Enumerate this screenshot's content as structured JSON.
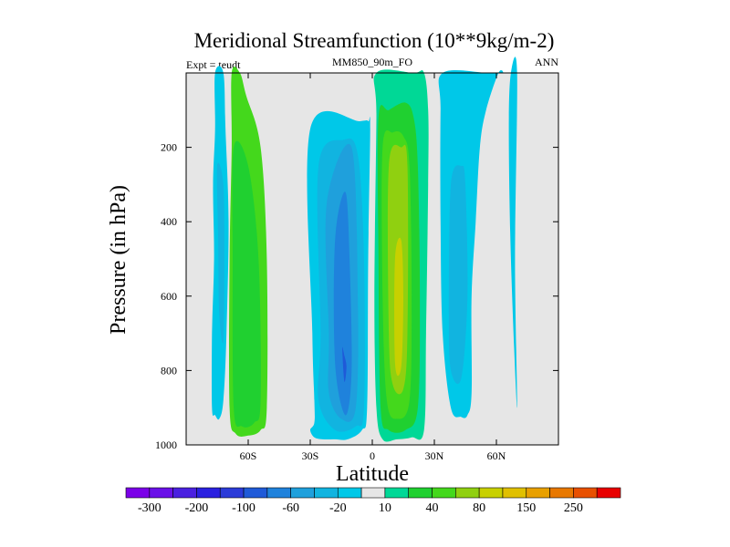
{
  "chart_data": {
    "type": "filled-contour",
    "title": "Meridional Streamfunction (10**9kg/m-2)",
    "left_label": "Expt = teudt",
    "center_label": "MM850_90m_FO",
    "right_label": "ANN",
    "xlabel": "Latitude",
    "ylabel": "Pressure (in hPa)",
    "xlim": [
      -90,
      90
    ],
    "ylim": [
      1000,
      0
    ],
    "x_ticks": [
      {
        "value": -60,
        "label": "60S"
      },
      {
        "value": -30,
        "label": "30S"
      },
      {
        "value": 0,
        "label": "0"
      },
      {
        "value": 30,
        "label": "30N"
      },
      {
        "value": 60,
        "label": "60N"
      }
    ],
    "y_ticks": [
      {
        "value": 200,
        "label": "200"
      },
      {
        "value": 400,
        "label": "400"
      },
      {
        "value": 600,
        "label": "600"
      },
      {
        "value": 800,
        "label": "800"
      },
      {
        "value": 1000,
        "label": "1000"
      }
    ],
    "background_color": "#e6e6e6",
    "colorbar": {
      "colors": [
        "#7b00e8",
        "#6a10e8",
        "#4a20e0",
        "#2a20e0",
        "#2b3bd8",
        "#1f5ad8",
        "#1f82dc",
        "#1fa0dc",
        "#11b4e0",
        "#00c8e8",
        "#e6e6e6",
        "#00d896",
        "#20d030",
        "#44d81c",
        "#90d010",
        "#c8d000",
        "#e0c000",
        "#e8a000",
        "#e87800",
        "#e85000",
        "#e80000"
      ],
      "labels": [
        "-300",
        "-200",
        "-100",
        "-60",
        "-20",
        "10",
        "40",
        "80",
        "150",
        "250"
      ],
      "label_boundary_index": [
        1,
        3,
        5,
        7,
        9,
        11,
        13,
        15,
        17,
        19
      ]
    },
    "regions": [
      {
        "name": "sh-polar-cell-cyan",
        "color": "#00c8e8",
        "lat": [
          -76,
          -76,
          -77,
          -76.5,
          -77.5,
          -77.5,
          -76,
          -74,
          -72,
          -70.5,
          -69.5,
          -71,
          -72
        ],
        "p": [
          0,
          150,
          300,
          500,
          700,
          900,
          920,
          930,
          880,
          700,
          400,
          150,
          0
        ],
        "close": "top"
      },
      {
        "name": "sh-polar-cell-blue",
        "color": "#11b4e0",
        "lat": [
          -75,
          -74.5,
          -74,
          -72,
          -71.5,
          -72
        ],
        "p": [
          250,
          450,
          650,
          720,
          500,
          300
        ]
      },
      {
        "name": "sh-ferrel-cell-green-outer",
        "color": "#44d81c",
        "lat": [
          -68,
          -68,
          -69,
          -69,
          -66,
          -60,
          -54,
          -51,
          -51,
          -54,
          -61,
          -64
        ],
        "p": [
          0,
          200,
          500,
          900,
          970,
          975,
          960,
          900,
          500,
          200,
          60,
          0
        ],
        "close": "top"
      },
      {
        "name": "sh-ferrel-cell-green-inner",
        "color": "#20d030",
        "lat": [
          -67,
          -67.5,
          -67,
          -63,
          -57,
          -54,
          -55,
          -60
        ],
        "p": [
          200,
          500,
          900,
          950,
          940,
          880,
          500,
          250
        ]
      },
      {
        "name": "sh-hadley-cell-cyan",
        "color": "#00c8e8",
        "lat": [
          -30,
          -29,
          -28,
          -28,
          -30,
          -28,
          -24,
          -18,
          -12,
          -5,
          -2.5,
          -2,
          -1,
          -2,
          -6
        ],
        "p": [
          150,
          700,
          880,
          940,
          960,
          980,
          985,
          985,
          985,
          960,
          900,
          500,
          150,
          130,
          130
        ]
      },
      {
        "name": "sh-hadley-cell-blue1",
        "color": "#11b4e0",
        "lat": [
          -26,
          -25,
          -26,
          -18,
          -8,
          -4,
          -4,
          -7,
          -14
        ],
        "p": [
          250,
          700,
          880,
          960,
          950,
          900,
          500,
          220,
          180
        ]
      },
      {
        "name": "sh-hadley-cell-blue2",
        "color": "#1fa0dc",
        "lat": [
          -22,
          -21,
          -21,
          -15,
          -8,
          -7,
          -10
        ],
        "p": [
          350,
          700,
          860,
          930,
          900,
          600,
          200
        ]
      },
      {
        "name": "sh-hadley-cell-blue3",
        "color": "#1f82dc",
        "lat": [
          -18,
          -18,
          -13,
          -10,
          -11,
          -13
        ],
        "p": [
          450,
          780,
          920,
          800,
          500,
          320
        ]
      },
      {
        "name": "sh-hadley-cell-core",
        "color": "#1f5ad8",
        "lat": [
          -14.5,
          -13.5,
          -12.5,
          -13.5
        ],
        "p": [
          740,
          830,
          790,
          760
        ]
      },
      {
        "name": "nh-hadley-cell-teal",
        "color": "#00d896",
        "lat": [
          2,
          2,
          1,
          2,
          5,
          12,
          19,
          25,
          26,
          27,
          27,
          25,
          20
        ],
        "p": [
          0,
          120,
          600,
          900,
          985,
          985,
          980,
          960,
          700,
          300,
          100,
          0,
          0
        ],
        "close": "top"
      },
      {
        "name": "nh-hadley-cell-green1",
        "color": "#20d030",
        "lat": [
          3,
          3,
          4,
          8,
          16,
          22,
          23,
          22,
          20,
          16,
          8
        ],
        "p": [
          120,
          500,
          900,
          960,
          960,
          900,
          600,
          250,
          120,
          80,
          100
        ]
      },
      {
        "name": "nh-hadley-cell-green2",
        "color": "#44d81c",
        "lat": [
          5,
          5,
          7,
          12,
          18,
          19,
          18,
          15,
          10
        ],
        "p": [
          200,
          600,
          880,
          930,
          880,
          600,
          250,
          170,
          160
        ]
      },
      {
        "name": "nh-hadley-cell-yellowgreen",
        "color": "#90d010",
        "lat": [
          8,
          8,
          10,
          15,
          17,
          17,
          14
        ],
        "p": [
          250,
          700,
          840,
          850,
          700,
          250,
          200
        ]
      },
      {
        "name": "nh-hadley-cell-core",
        "color": "#c8d000",
        "lat": [
          11,
          11,
          14,
          15,
          14
        ],
        "p": [
          500,
          780,
          790,
          600,
          450
        ]
      },
      {
        "name": "nh-ferrel-cell-cyan",
        "color": "#00c8e8",
        "lat": [
          34,
          33,
          33,
          34,
          38,
          43,
          46,
          48,
          48,
          50,
          52,
          55,
          61,
          63,
          56
        ],
        "p": [
          0,
          100,
          400,
          700,
          900,
          925,
          920,
          860,
          600,
          400,
          200,
          100,
          0,
          0,
          0
        ],
        "close": "top"
      },
      {
        "name": "nh-ferrel-cell-blue",
        "color": "#11b4e0",
        "lat": [
          38,
          37,
          38,
          43,
          46,
          45,
          43
        ],
        "p": [
          300,
          650,
          800,
          820,
          600,
          300,
          250
        ]
      },
      {
        "name": "nh-polar-strip-cyan",
        "color": "#00c8e8",
        "lat": [
          67,
          66,
          67,
          70,
          69,
          70
        ],
        "p": [
          0,
          150,
          500,
          900,
          500,
          0
        ]
      }
    ]
  }
}
